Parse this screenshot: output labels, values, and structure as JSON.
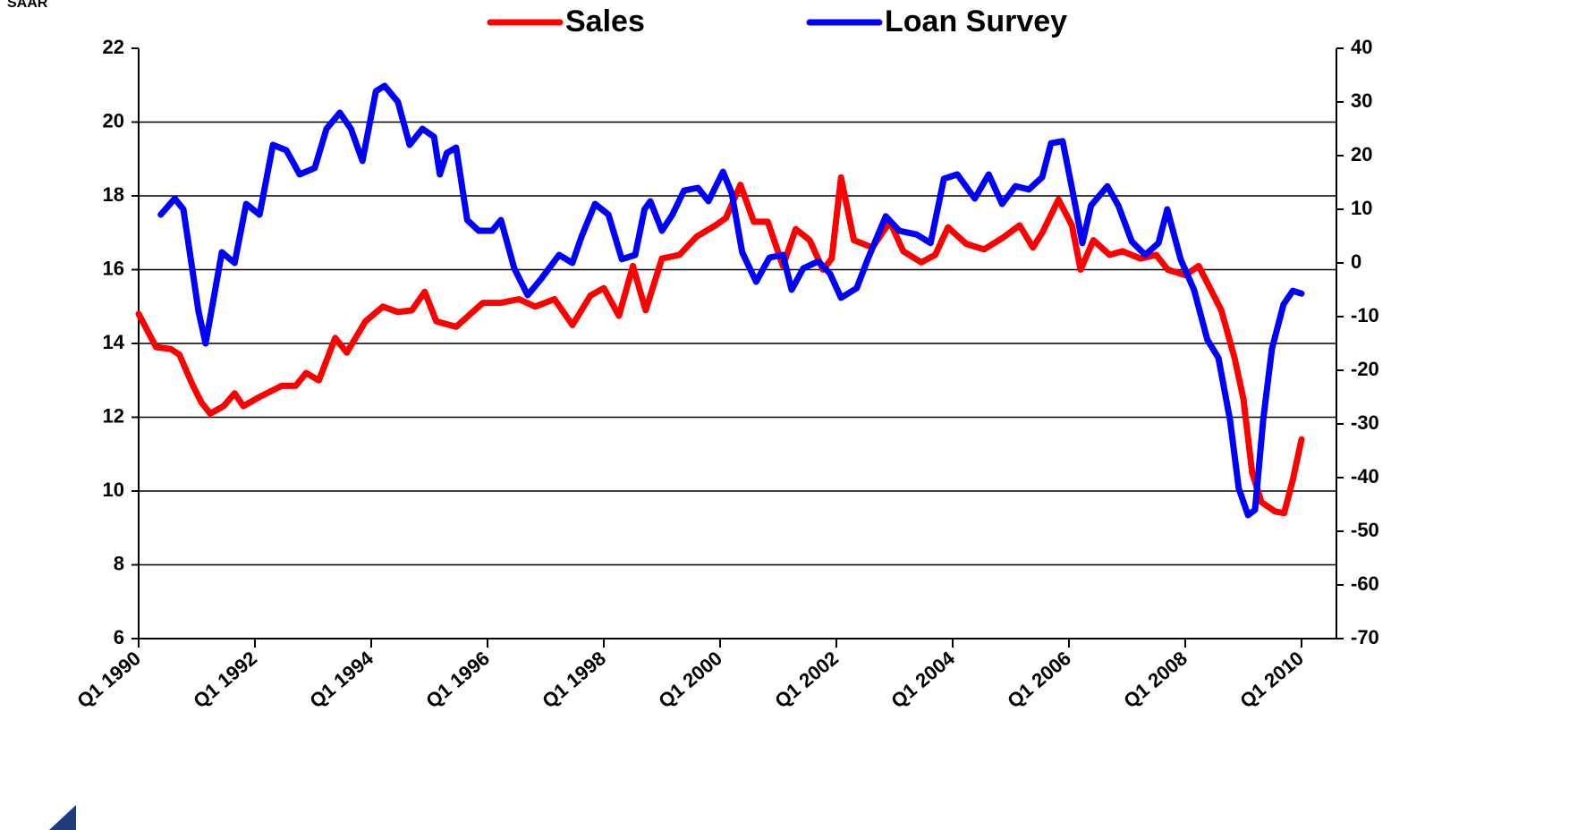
{
  "chart_data": {
    "type": "line",
    "y_label": "SAAR",
    "xlim": [
      1990,
      2010.6
    ],
    "xticks": [
      {
        "value": 1990,
        "label": "Q1 1990"
      },
      {
        "value": 1992,
        "label": "Q1 1992"
      },
      {
        "value": 1994,
        "label": "Q1 1994"
      },
      {
        "value": 1996,
        "label": "Q1 1996"
      },
      {
        "value": 1998,
        "label": "Q1 1998"
      },
      {
        "value": 2000,
        "label": "Q1 2000"
      },
      {
        "value": 2002,
        "label": "Q1 2002"
      },
      {
        "value": 2004,
        "label": "Q1 2004"
      },
      {
        "value": 2006,
        "label": "Q1 2006"
      },
      {
        "value": 2008,
        "label": "Q1 2008"
      },
      {
        "value": 2010,
        "label": "Q1 2010"
      }
    ],
    "ylim": [
      6,
      22
    ],
    "yticks": [
      6,
      8,
      10,
      12,
      14,
      16,
      18,
      20,
      22
    ],
    "y2lim": [
      -70,
      40
    ],
    "y2ticks": [
      -70,
      -60,
      -50,
      -40,
      -30,
      -20,
      -10,
      0,
      10,
      20,
      30,
      40
    ],
    "grid": true,
    "legend": "top",
    "series": [
      {
        "name": "Sales",
        "color": "#ff0000",
        "x": [
          1990.0,
          1990.3,
          1990.55,
          1990.7,
          1990.92,
          1991.08,
          1991.23,
          1991.46,
          1991.65,
          1991.8,
          1992.08,
          1992.46,
          1992.7,
          1992.88,
          1993.1,
          1993.38,
          1993.58,
          1993.9,
          1994.2,
          1994.46,
          1994.7,
          1994.92,
          1995.12,
          1995.46,
          1995.92,
          1996.23,
          1996.54,
          1996.82,
          1997.15,
          1997.46,
          1997.77,
          1998.0,
          1998.26,
          1998.5,
          1998.72,
          1999.0,
          1999.3,
          1999.6,
          1999.92,
          2000.1,
          2000.35,
          2000.58,
          2000.82,
          2001.08,
          2001.3,
          2001.54,
          2001.77,
          2001.92,
          2002.08,
          2002.3,
          2002.62,
          2002.92,
          2003.15,
          2003.46,
          2003.7,
          2003.92,
          2004.23,
          2004.54,
          2004.85,
          2005.15,
          2005.38,
          2005.54,
          2005.82,
          2006.05,
          2006.2,
          2006.42,
          2006.7,
          2006.92,
          2007.23,
          2007.5,
          2007.7,
          2008.0,
          2008.23,
          2008.62,
          2008.85,
          2009.0,
          2009.15,
          2009.31,
          2009.54,
          2009.7,
          2009.85,
          2010.0
        ],
        "values": [
          14.8,
          13.9,
          13.85,
          13.7,
          12.9,
          12.4,
          12.1,
          12.3,
          12.65,
          12.3,
          12.55,
          12.85,
          12.85,
          13.2,
          13.0,
          14.15,
          13.75,
          14.6,
          15.0,
          14.85,
          14.9,
          15.4,
          14.6,
          14.45,
          15.1,
          15.1,
          15.2,
          15.0,
          15.2,
          14.5,
          15.3,
          15.5,
          14.75,
          16.1,
          14.9,
          16.3,
          16.4,
          16.9,
          17.2,
          17.4,
          18.3,
          17.3,
          17.3,
          16.1,
          17.1,
          16.8,
          16.0,
          16.3,
          18.5,
          16.8,
          16.6,
          17.3,
          16.5,
          16.2,
          16.4,
          17.15,
          16.7,
          16.55,
          16.85,
          17.2,
          16.6,
          17.0,
          17.9,
          17.2,
          16.0,
          16.8,
          16.4,
          16.5,
          16.3,
          16.4,
          16.0,
          15.85,
          16.1,
          14.9,
          13.6,
          12.5,
          10.5,
          9.7,
          9.45,
          9.4,
          10.3,
          11.4
        ]
      },
      {
        "name": "Loan Survey",
        "color": "#0000ff",
        "axis": "y2",
        "x": [
          1990.38,
          1990.62,
          1990.77,
          1990.92,
          1991.03,
          1991.15,
          1991.3,
          1991.43,
          1991.65,
          1991.85,
          1992.08,
          1992.31,
          1992.54,
          1992.77,
          1993.03,
          1993.23,
          1993.46,
          1993.65,
          1993.85,
          1994.08,
          1994.23,
          1994.46,
          1994.66,
          1994.88,
          1995.08,
          1995.18,
          1995.3,
          1995.46,
          1995.65,
          1995.85,
          1996.08,
          1996.23,
          1996.46,
          1996.69,
          1996.92,
          1997.23,
          1997.46,
          1997.62,
          1997.85,
          1998.08,
          1998.31,
          1998.54,
          1998.7,
          1998.8,
          1999.0,
          1999.18,
          1999.38,
          1999.62,
          1999.8,
          2000.05,
          2000.2,
          2000.38,
          2000.62,
          2000.85,
          2001.08,
          2001.23,
          2001.43,
          2001.69,
          2001.89,
          2002.08,
          2002.35,
          2002.54,
          2002.85,
          2003.08,
          2003.38,
          2003.62,
          2003.85,
          2004.08,
          2004.38,
          2004.62,
          2004.85,
          2005.08,
          2005.31,
          2005.54,
          2005.69,
          2005.89,
          2006.05,
          2006.23,
          2006.38,
          2006.66,
          2006.85,
          2007.08,
          2007.31,
          2007.54,
          2007.69,
          2007.92,
          2008.15,
          2008.38,
          2008.57,
          2008.77,
          2008.92,
          2009.08,
          2009.2,
          2009.34,
          2009.49,
          2009.69,
          2009.85,
          2010.0
        ],
        "values": [
          9,
          12,
          10,
          -1,
          -9,
          -15,
          -6,
          2,
          0,
          11,
          9,
          22,
          21,
          16.5,
          17.7,
          25,
          28,
          25,
          19,
          32,
          33,
          30,
          22,
          25,
          23.5,
          16.5,
          20.5,
          21.5,
          8,
          6,
          6,
          8,
          -1,
          -6,
          -3,
          1.5,
          0,
          5,
          11,
          9,
          0.7,
          1.5,
          10,
          11.5,
          6,
          9,
          13.5,
          14,
          11.5,
          17,
          13,
          2,
          -3.5,
          1,
          1.5,
          -5,
          -1,
          0.3,
          -2,
          -6.5,
          -4.7,
          0.7,
          8.7,
          6,
          5.3,
          3.7,
          15.7,
          16.5,
          12,
          16.5,
          11,
          14.3,
          13.7,
          16,
          22.3,
          22.7,
          14,
          3.7,
          10.7,
          14.3,
          10.7,
          4,
          1.5,
          3.7,
          10,
          0.7,
          -5,
          -14.3,
          -17.7,
          -29.3,
          -42,
          -47,
          -46,
          -29.3,
          -16,
          -7.7,
          -5.2,
          -5.7
        ]
      }
    ]
  }
}
